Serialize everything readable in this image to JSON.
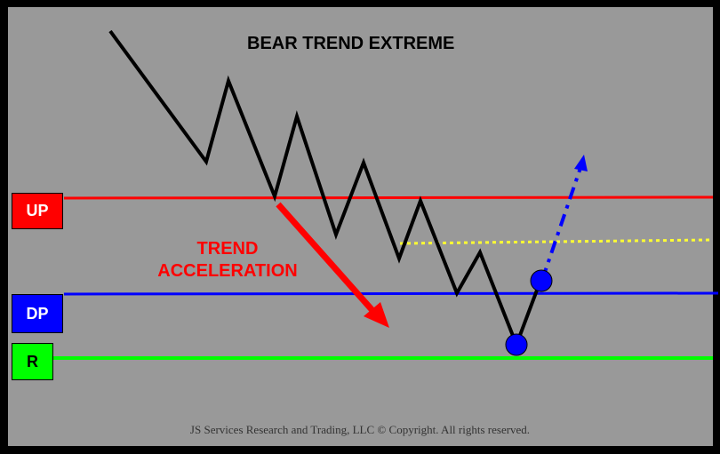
{
  "title": "BEAR TREND EXTREME",
  "annotation": {
    "line1": "TREND",
    "line2": "ACCELERATION"
  },
  "levels": [
    {
      "key": "up",
      "label": "UP",
      "color": "#ff0000",
      "text_color": "#ffffff"
    },
    {
      "key": "dp",
      "label": "DP",
      "color": "#0000ff",
      "text_color": "#ffffff"
    },
    {
      "key": "r",
      "label": "R",
      "color": "#00ff00",
      "text_color": "#000000"
    }
  ],
  "colors": {
    "background": "#999999",
    "frame": "#000000",
    "price_line": "#000000",
    "acceleration_arrow": "#ff0000",
    "projection_arrow": "#0000ff",
    "dotted_level": "#ffff33",
    "markers": "#0000ff"
  },
  "footer": "JS Services Research and Trading, LLC © Copyright. All rights reserved."
}
